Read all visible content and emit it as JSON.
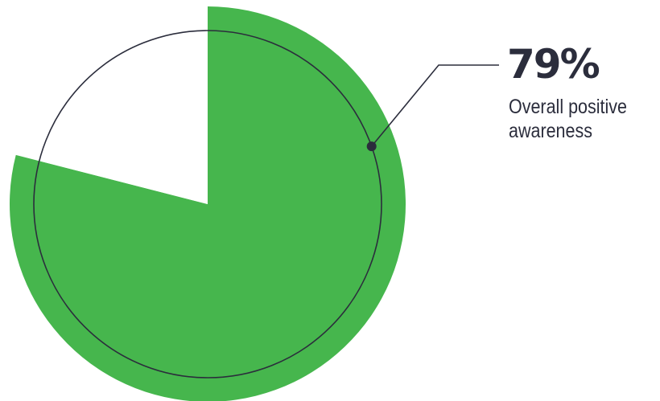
{
  "chart_data": {
    "type": "pie",
    "slices": [
      {
        "label": "Overall positive awareness",
        "value": 79,
        "display": "79%"
      },
      {
        "label": "",
        "value": 21
      }
    ]
  },
  "colors": {
    "positive": "#46b64d",
    "remainder": "#ffffff",
    "ring": "#2b2d3c",
    "text": "#2b2d3c"
  }
}
